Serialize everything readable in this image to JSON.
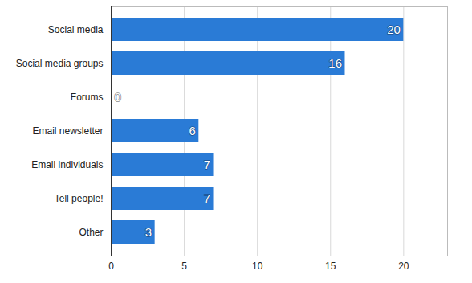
{
  "chart_data": {
    "type": "bar",
    "orientation": "horizontal",
    "categories": [
      "Social media",
      "Social media groups",
      "Forums",
      "Email newsletter",
      "Email individuals",
      "Tell people!",
      "Other"
    ],
    "values": [
      20,
      16,
      0,
      6,
      7,
      7,
      3
    ],
    "color": "#2a7bd6",
    "xlim": [
      0,
      23
    ],
    "xticks": [
      0,
      5,
      10,
      15,
      20
    ],
    "grid": true,
    "data_labels": true
  }
}
